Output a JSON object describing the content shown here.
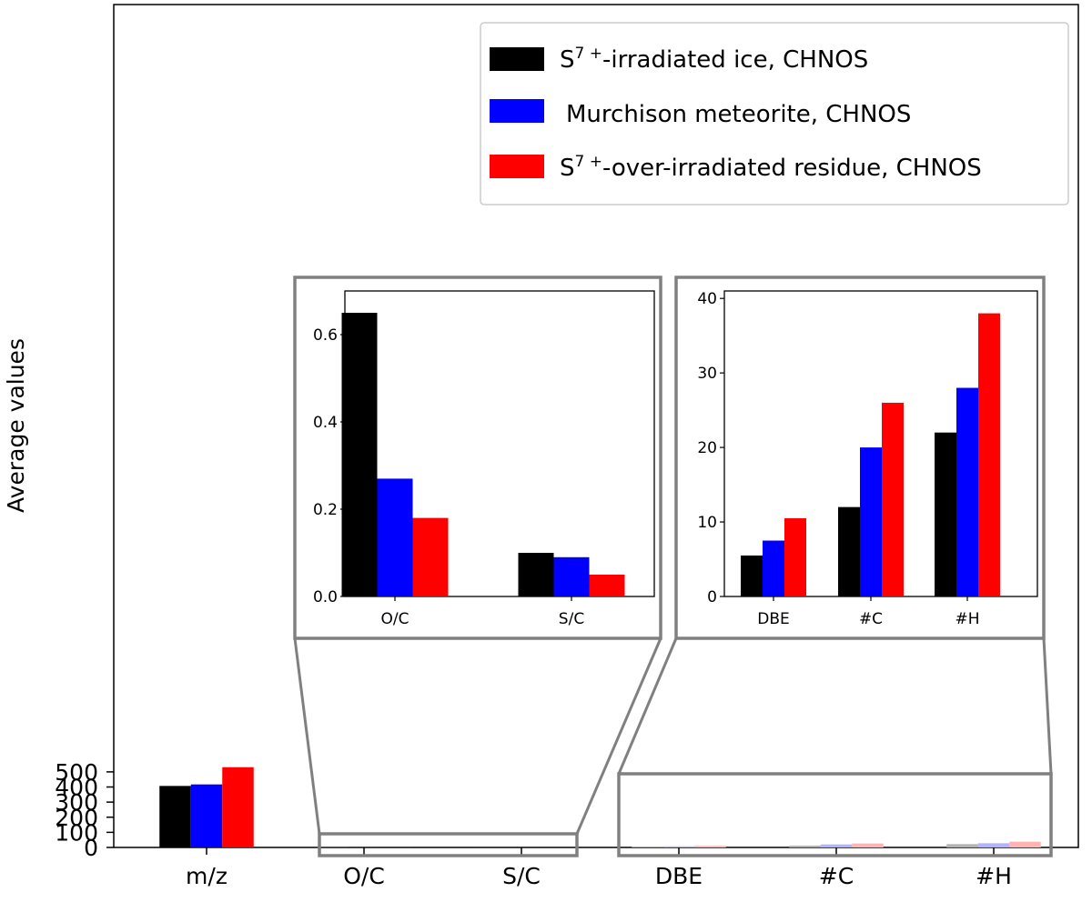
{
  "chart_data": [
    {
      "type": "bar",
      "ylabel": "Average values",
      "categories": [
        "m/z",
        "O/C",
        "S/C",
        "DBE",
        "#C",
        "#H"
      ],
      "ylim": [
        0,
        540
      ],
      "yticks": [
        0,
        100,
        200,
        300,
        400,
        500
      ],
      "grid": false,
      "legend_position": "top-right",
      "series": [
        {
          "name": "S$^{7+}$-irradiated ice, CHNOS",
          "color": "#000000",
          "values": [
            407,
            0.65,
            0.1,
            5.5,
            12,
            22
          ]
        },
        {
          "name": "Murchison meteorite, CHNOS",
          "color": "#0000ff",
          "values": [
            417,
            0.27,
            0.09,
            7.5,
            20,
            28
          ]
        },
        {
          "name": "S$^{7+}$-over-irradiated residue, CHNOS",
          "color": "#ff0000",
          "values": [
            531,
            0.18,
            0.05,
            10.5,
            26,
            38
          ]
        }
      ]
    },
    {
      "type": "bar",
      "categories": [
        "O/C",
        "S/C"
      ],
      "ylim": [
        0,
        0.7
      ],
      "yticks": [
        "0.0",
        "0.2",
        "0.4",
        "0.6"
      ],
      "series": [
        {
          "color": "#000000",
          "values": [
            0.65,
            0.1
          ]
        },
        {
          "color": "#0000ff",
          "values": [
            0.27,
            0.09
          ]
        },
        {
          "color": "#ff0000",
          "values": [
            0.18,
            0.05
          ]
        }
      ]
    },
    {
      "type": "bar",
      "categories": [
        "DBE",
        "#C",
        "#H"
      ],
      "ylim": [
        0,
        41
      ],
      "yticks": [
        "0",
        "10",
        "20",
        "30",
        "40"
      ],
      "series": [
        {
          "color": "#000000",
          "values": [
            5.5,
            12,
            22
          ]
        },
        {
          "color": "#0000ff",
          "values": [
            7.5,
            20,
            28
          ]
        },
        {
          "color": "#ff0000",
          "values": [
            10.5,
            26,
            38
          ]
        }
      ]
    }
  ]
}
